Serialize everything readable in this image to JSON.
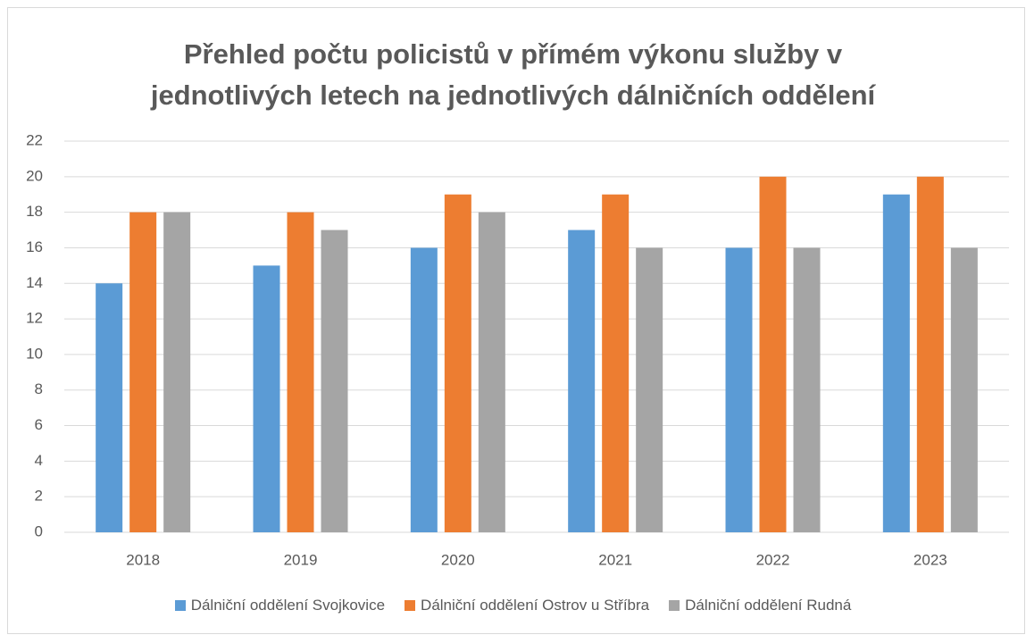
{
  "chart_data": {
    "type": "bar",
    "title": "Přehled počtu policistů v přímém výkonu služby v jednotlivých letech na jednotlivých dálničních oddělení",
    "categories": [
      "2018",
      "2019",
      "2020",
      "2021",
      "2022",
      "2023"
    ],
    "series": [
      {
        "name": "Dálniční oddělení Svojkovice",
        "color": "#5b9bd5",
        "values": [
          14,
          15,
          16,
          17,
          16,
          19
        ]
      },
      {
        "name": "Dálniční oddělení Ostrov u Stříbra",
        "color": "#ed7d31",
        "values": [
          18,
          18,
          19,
          19,
          20,
          20
        ]
      },
      {
        "name": "Dálniční oddělení Rudná",
        "color": "#a5a5a5",
        "values": [
          18,
          17,
          18,
          16,
          16,
          16
        ]
      }
    ],
    "ylim": [
      0,
      22
    ],
    "yticks": [
      0,
      2,
      4,
      6,
      8,
      10,
      12,
      14,
      16,
      18,
      20,
      22
    ],
    "grid": true,
    "legend": "bottom"
  }
}
